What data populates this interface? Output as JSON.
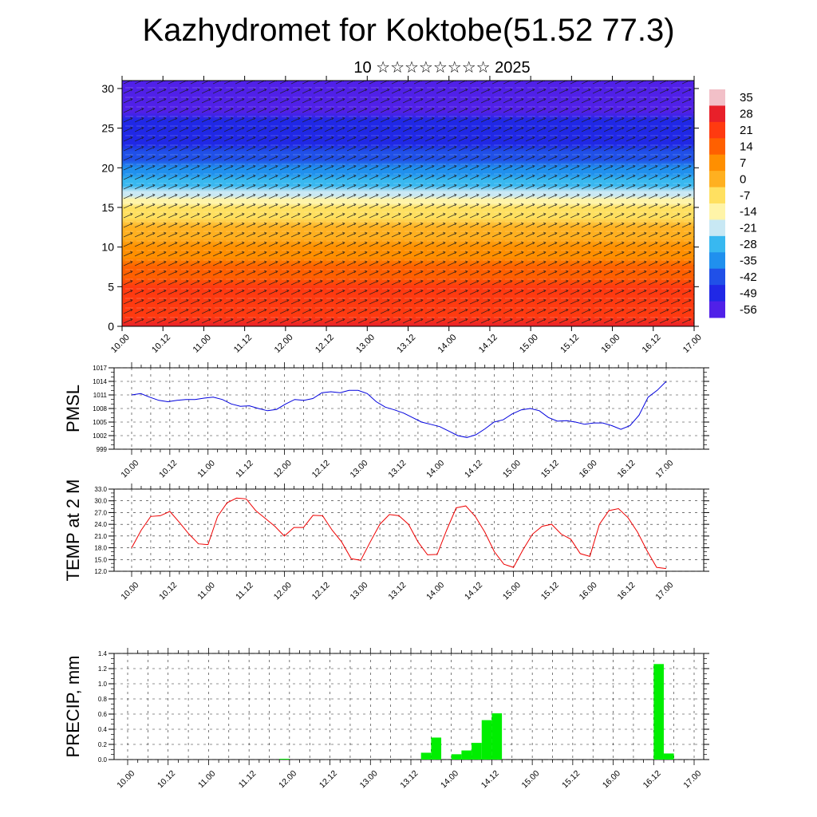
{
  "header": {
    "title": "Kazhydromet for Koktobe(51.52 77.3)",
    "subtitle": "10 ☆☆☆☆☆☆☆☆ 2025"
  },
  "chart_data": [
    {
      "id": "cross-section",
      "type": "heatmap",
      "x_tick_labels": [
        "10.00",
        "10.12",
        "11.00",
        "11.12",
        "12.00",
        "12.12",
        "13.00",
        "13.12",
        "14.00",
        "14.12",
        "15.00",
        "15.12",
        "16.00",
        "16.12",
        "17.00"
      ],
      "y_ticks": [
        0,
        5,
        10,
        15,
        20,
        25,
        30
      ],
      "ylim": [
        0,
        31
      ],
      "colorbar_labels": [
        "35",
        "28",
        "21",
        "14",
        "7",
        "0",
        "-7",
        "-14",
        "-21",
        "-28",
        "-35",
        "-42",
        "-49",
        "-56"
      ],
      "colorbar_colors": [
        "#f2c0c8",
        "#e8202a",
        "#ff3a10",
        "#ff6000",
        "#ff8f00",
        "#ffb020",
        "#ffe060",
        "#fff4a8",
        "#c8e8f4",
        "#38b8f0",
        "#2090ee",
        "#2050e8",
        "#2028e6",
        "#5020e8"
      ],
      "temperature_profile": [
        {
          "alt": 0,
          "temp": 30
        },
        {
          "alt": 5,
          "temp": 21
        },
        {
          "alt": 10,
          "temp": 10
        },
        {
          "alt": 15,
          "temp": -7
        },
        {
          "alt": 17,
          "temp": -20
        },
        {
          "alt": 20,
          "temp": -35
        },
        {
          "alt": 24,
          "temp": -45
        },
        {
          "alt": 28,
          "temp": -52
        },
        {
          "alt": 31,
          "temp": -58
        }
      ]
    },
    {
      "id": "pmsl",
      "type": "line",
      "ylabel": "PMSL",
      "ylim": [
        999,
        1017
      ],
      "y_ticks": [
        999,
        1002,
        1005,
        1008,
        1011,
        1014,
        1017
      ],
      "x_tick_labels": [
        "10.00",
        "10.12",
        "11.00",
        "11.12",
        "12.00",
        "12.12",
        "13.00",
        "13.12",
        "14.00",
        "14.12",
        "15.00",
        "15.12",
        "16.00",
        "16.12",
        "17.00"
      ],
      "color": "#0000dd",
      "values": [
        1011,
        1011.3,
        1010.5,
        1009.8,
        1009.5,
        1009.8,
        1010,
        1010,
        1010.3,
        1010.5,
        1010,
        1009,
        1008.5,
        1008.6,
        1008,
        1007.5,
        1007.8,
        1009,
        1010,
        1009.8,
        1010.2,
        1011.5,
        1011.7,
        1011.5,
        1012,
        1012,
        1011.3,
        1009.5,
        1008.3,
        1007.7,
        1007,
        1006,
        1005,
        1004.5,
        1004,
        1003,
        1002,
        1001.6,
        1002.2,
        1003.5,
        1005,
        1005.5,
        1006.8,
        1007.7,
        1008,
        1007.5,
        1006,
        1005.2,
        1005.3,
        1005,
        1004.5,
        1004.8,
        1004.8,
        1004.2,
        1003.4,
        1004.2,
        1006.5,
        1010.5,
        1012,
        1014
      ]
    },
    {
      "id": "temp2m",
      "type": "line",
      "ylabel": "TEMP at 2 M",
      "ylim": [
        12,
        33
      ],
      "y_ticks": [
        "12.0",
        "15.0",
        "18.0",
        "21.0",
        "24.0",
        "27.0",
        "30.0",
        "33.0"
      ],
      "x_tick_labels": [
        "10.00",
        "10.12",
        "11.00",
        "11.12",
        "12.00",
        "12.12",
        "13.00",
        "13.12",
        "14.00",
        "14.12",
        "15.00",
        "15.12",
        "16.00",
        "16.12",
        "17.00"
      ],
      "color": "#ee0000",
      "values": [
        18,
        22.5,
        26,
        26.2,
        27.3,
        24.5,
        21.5,
        19,
        18.8,
        26,
        29.5,
        30.7,
        30.5,
        27.5,
        25.5,
        23.5,
        21,
        23.2,
        23.2,
        26.3,
        26.2,
        22.5,
        19.5,
        15.2,
        14.8,
        19.5,
        24,
        26.5,
        26.2,
        24,
        19.5,
        16.2,
        16.3,
        22.5,
        28.2,
        28.7,
        26,
        22,
        17,
        13.8,
        13,
        17.5,
        21.5,
        23.5,
        24,
        21.5,
        20.2,
        16.5,
        15.8,
        24,
        27.5,
        28,
        25.7,
        22,
        17.2,
        13,
        12.7
      ]
    },
    {
      "id": "precip",
      "type": "bar",
      "ylabel": "PRECIP, mm",
      "ylim": [
        0,
        1.4
      ],
      "y_ticks": [
        "0.0",
        "0.2",
        "0.4",
        "0.6",
        "0.8",
        "1.0",
        "1.2",
        "1.4"
      ],
      "x_tick_labels": [
        "10.00",
        "10.12",
        "11.00",
        "11.12",
        "12.00",
        "12.12",
        "13.00",
        "13.12",
        "14.00",
        "14.12",
        "15.00",
        "15.12",
        "16.00",
        "16.12",
        "17.00"
      ],
      "color": "#00ee00",
      "bars": [
        {
          "hour": 45,
          "value": 0.01
        },
        {
          "hour": 87,
          "value": 0.09
        },
        {
          "hour": 90,
          "value": 0.29
        },
        {
          "hour": 96,
          "value": 0.07
        },
        {
          "hour": 99,
          "value": 0.12
        },
        {
          "hour": 102,
          "value": 0.22
        },
        {
          "hour": 105,
          "value": 0.52
        },
        {
          "hour": 108,
          "value": 0.61
        },
        {
          "hour": 156,
          "value": 1.26
        },
        {
          "hour": 159,
          "value": 0.08
        }
      ]
    }
  ]
}
